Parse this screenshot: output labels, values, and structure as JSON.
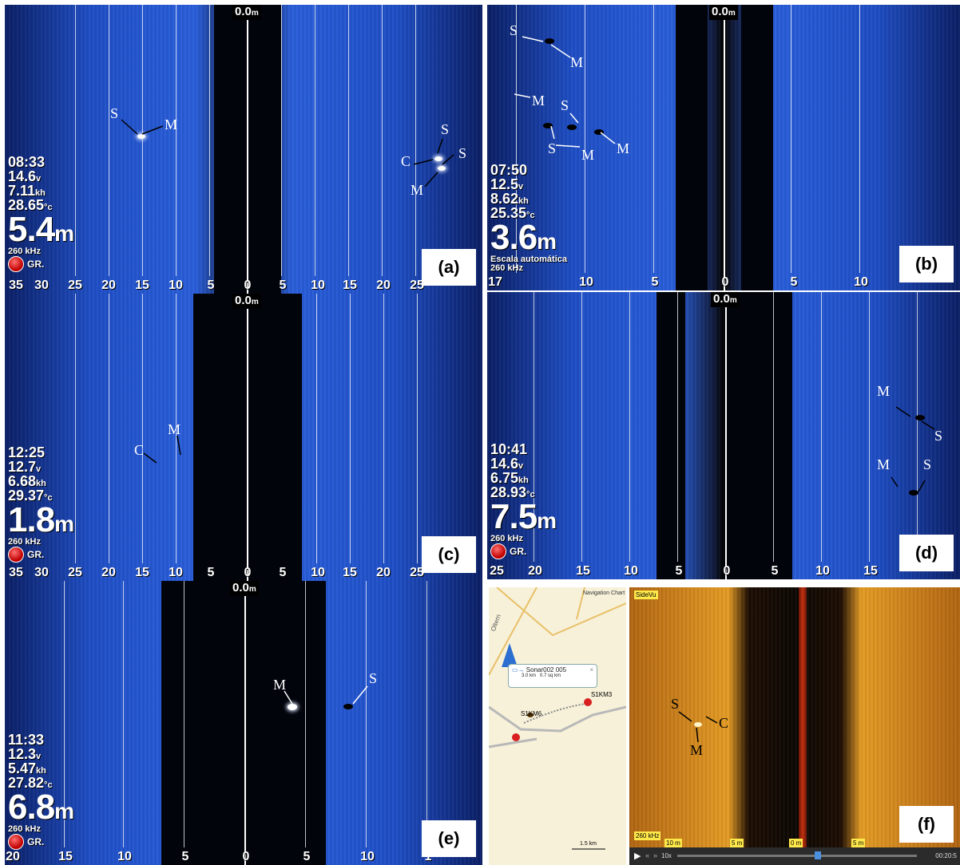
{
  "panels": {
    "a": {
      "label": "(a)",
      "depth_top": "0.0",
      "depth_unit": "m",
      "time": "08:33",
      "voltage": "14.6",
      "voltage_unit": "v",
      "speed": "7.11",
      "speed_unit": "kh",
      "temp": "28.65",
      "temp_unit": "°c",
      "depth": "5.4",
      "unit": "m",
      "freq": "260 kHz",
      "gr": "GR.",
      "ticks": [
        "35",
        "30",
        "25",
        "20",
        "15",
        "10",
        "5",
        "0",
        "5",
        "10",
        "15",
        "20",
        "25"
      ]
    },
    "b": {
      "label": "(b)",
      "depth_top": "0.0",
      "depth_unit": "m",
      "time": "07:50",
      "voltage": "12.5",
      "voltage_unit": "v",
      "speed": "8.62",
      "speed_unit": "kh",
      "temp": "25.35",
      "temp_unit": "°c",
      "depth": "3.6",
      "unit": "m",
      "scale": "Escala automática",
      "freq": "260 kHz",
      "ticks": [
        "17",
        "10",
        "5",
        "0",
        "5",
        "10"
      ]
    },
    "c": {
      "label": "(c)",
      "depth_top": "0.0",
      "depth_unit": "m",
      "time": "12:25",
      "voltage": "12.7",
      "voltage_unit": "v",
      "speed": "6.68",
      "speed_unit": "kh",
      "temp": "29.37",
      "temp_unit": "°c",
      "depth": "1.8",
      "unit": "m",
      "freq": "260 kHz",
      "gr": "GR.",
      "ticks": [
        "35",
        "30",
        "25",
        "20",
        "15",
        "10",
        "5",
        "0",
        "5",
        "10",
        "15",
        "20",
        "25"
      ]
    },
    "d": {
      "label": "(d)",
      "depth_top": "0.0",
      "depth_unit": "m",
      "time": "10:41",
      "voltage": "14.6",
      "voltage_unit": "v",
      "speed": "6.75",
      "speed_unit": "kh",
      "temp": "28.93",
      "temp_unit": "°c",
      "depth": "7.5",
      "unit": "m",
      "freq": "260 kHz",
      "gr": "GR.",
      "ticks": [
        "25",
        "20",
        "15",
        "10",
        "5",
        "0",
        "5",
        "10",
        "15"
      ]
    },
    "e": {
      "label": "(e)",
      "depth_top": "0.0",
      "depth_unit": "m",
      "time": "11:33",
      "voltage": "12.3",
      "voltage_unit": "v",
      "speed": "5.47",
      "speed_unit": "kh",
      "temp": "27.82",
      "temp_unit": "°c",
      "depth": "6.8",
      "unit": "m",
      "freq": "260 kHz",
      "gr": "GR.",
      "ticks": [
        "20",
        "15",
        "10",
        "5",
        "0",
        "5",
        "10",
        "1"
      ]
    },
    "f": {
      "label": "(f)",
      "map_title": "Navigation Chart",
      "road_label": "Oltern",
      "track_name": "Sonar002 005",
      "track_length": "3.0 km",
      "track_area": "0.7 sq km",
      "point1": "S1KM6",
      "point2": "S1KM3",
      "scale_bar": "1.5 km",
      "sidevu_title": "SideVu",
      "freq": "260 kHz",
      "range_marks": [
        "10 m",
        "5 m",
        "0 m",
        "5 m"
      ],
      "speed": "10x",
      "time": "00:20:5"
    }
  },
  "annotations": {
    "S": "S",
    "M": "M",
    "C": "C"
  }
}
